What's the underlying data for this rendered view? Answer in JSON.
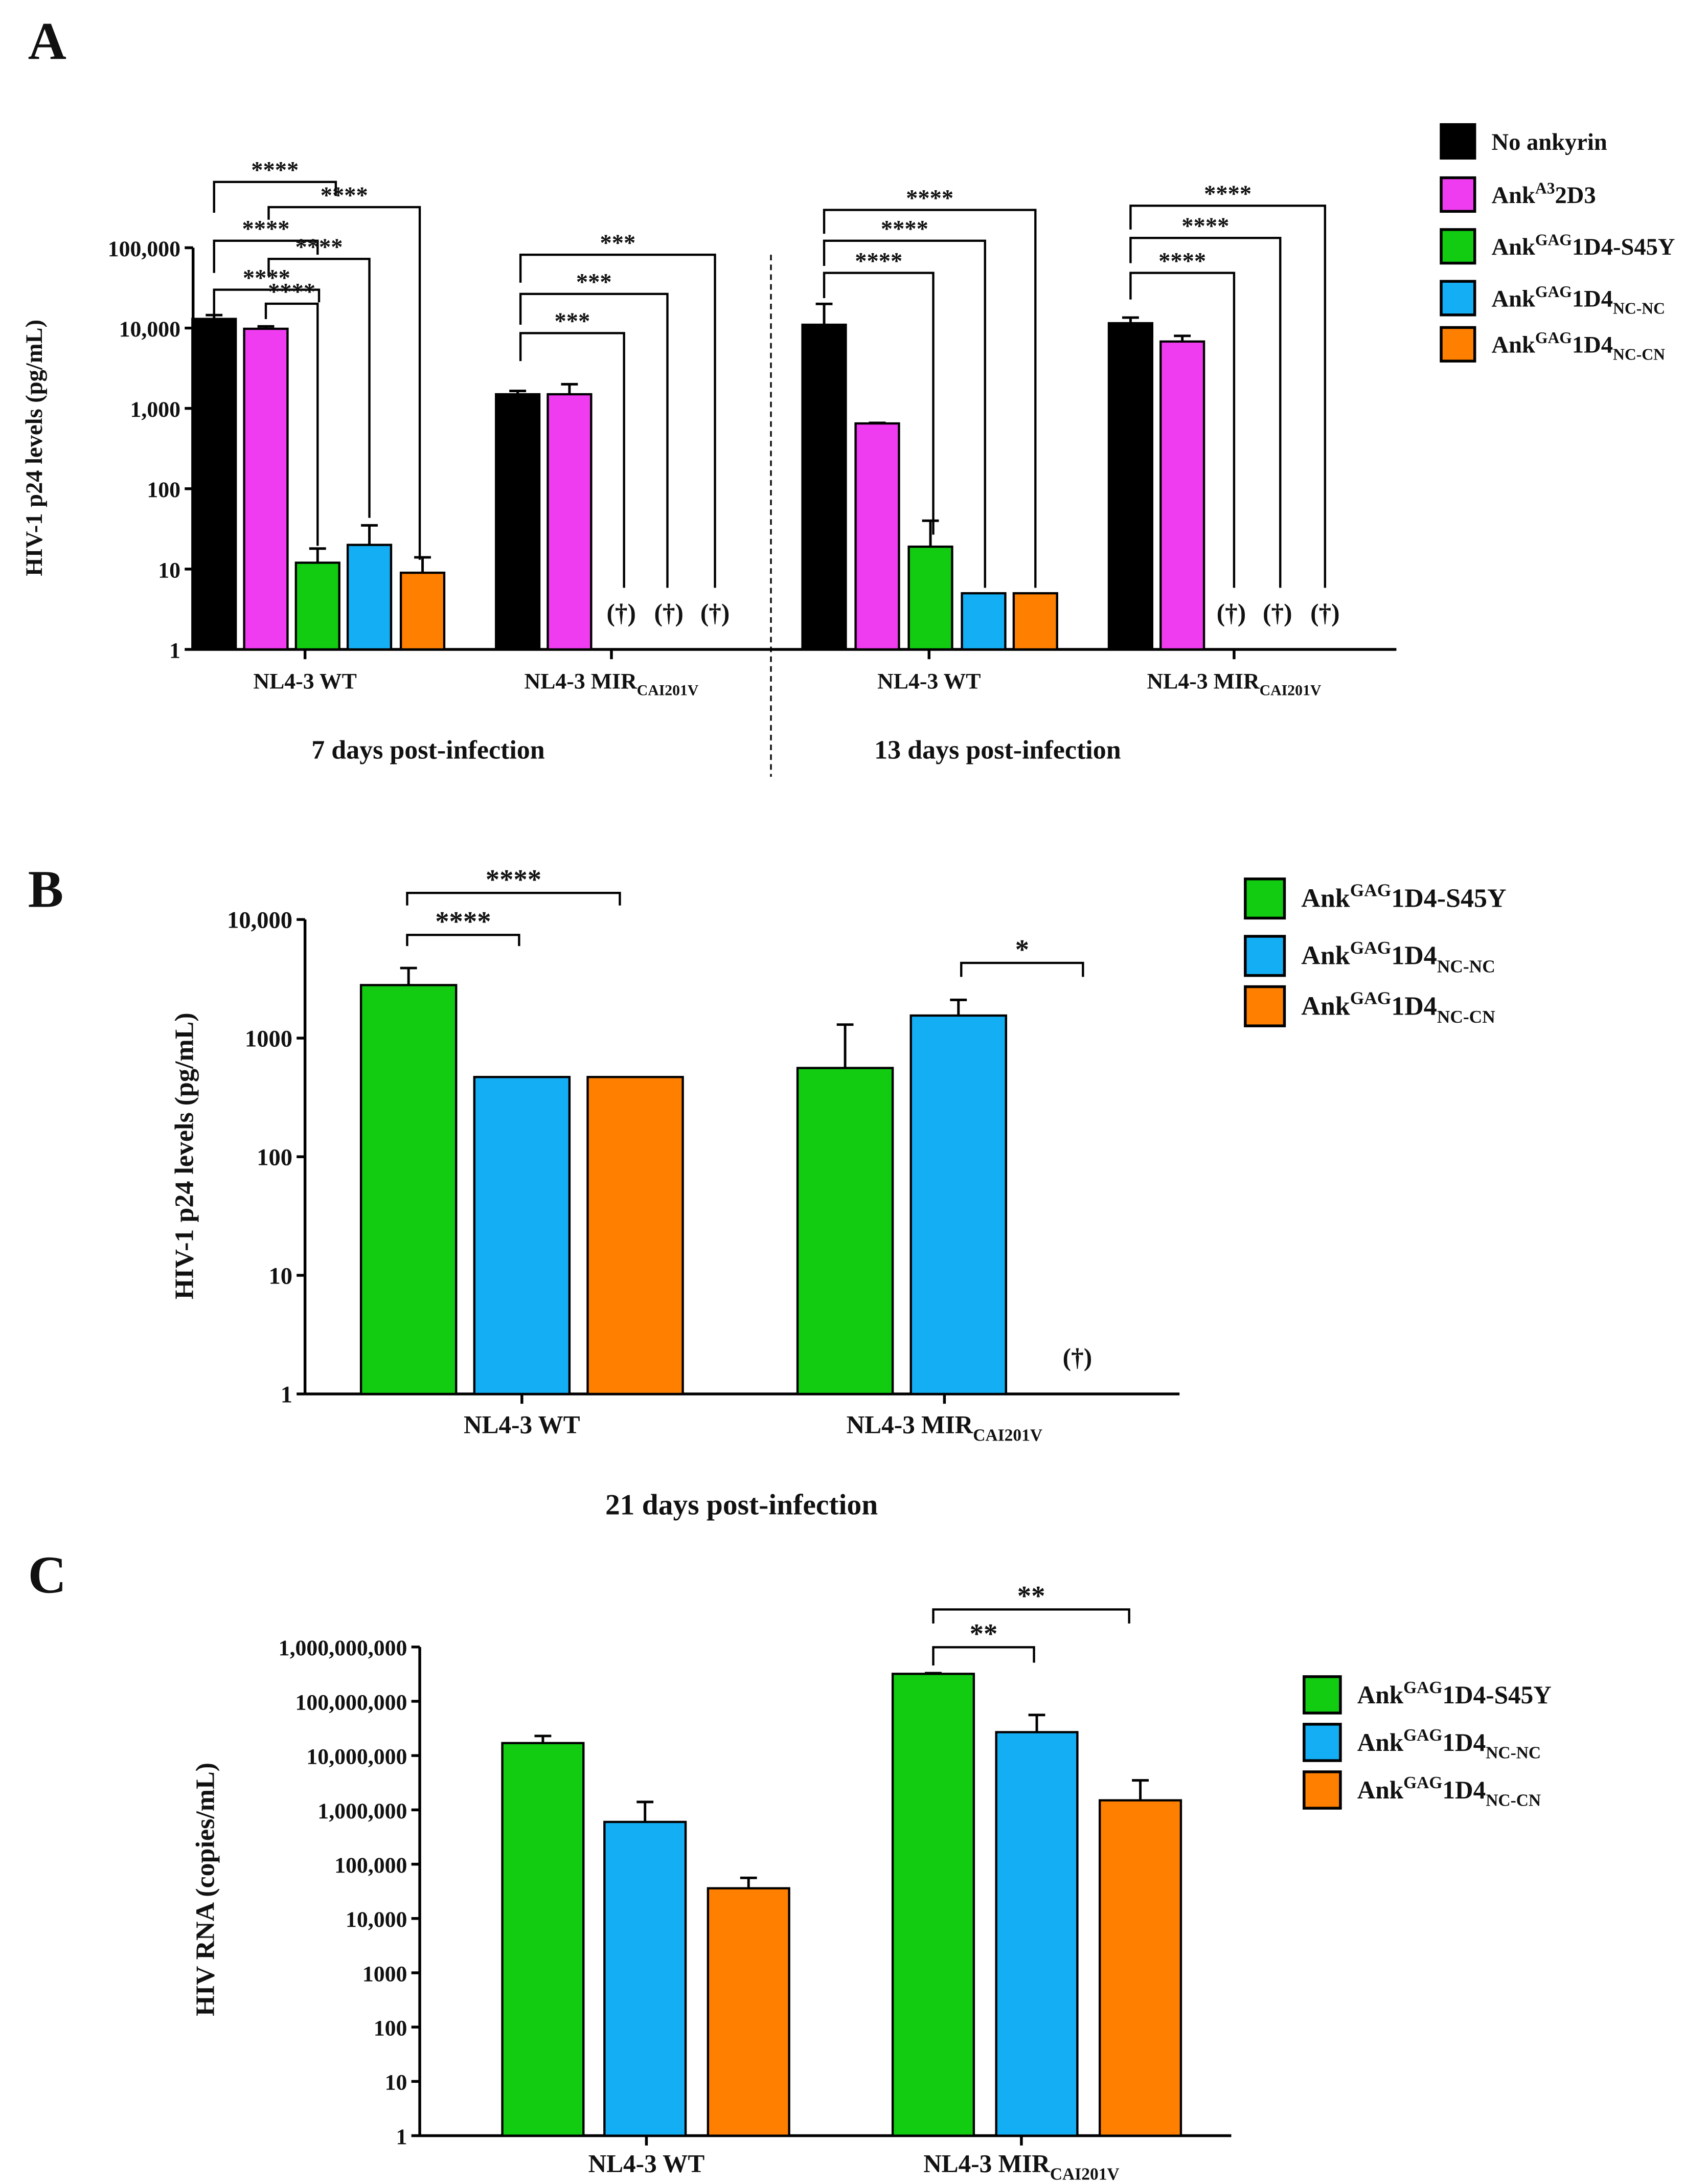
{
  "panels": {
    "a": "A",
    "b": "B",
    "c": "C"
  },
  "colors": {
    "no_ankyrin": "#000000",
    "a3_2d3": "#f03cf0",
    "s45y": "#11cc11",
    "nc_nc": "#14aef5",
    "nc_cn": "#ff8000"
  },
  "chart_data": [
    {
      "type": "bar",
      "panel": "A",
      "ylabel": "HIV-1 p24 levels (pg/mL)",
      "yscale": "log",
      "ylim": [
        1,
        100000
      ],
      "yticks": [
        "1",
        "10",
        "100",
        "1,000",
        "10,000",
        "100,000"
      ],
      "legend": [
        {
          "text": "No ankyrin",
          "color": "#000000"
        },
        {
          "text": "Ank",
          "sup": "A3",
          "after": "2D3",
          "color": "#f03cf0"
        },
        {
          "text": "Ank",
          "sup": "GAG",
          "after": "1D4-S45Y",
          "color": "#11cc11"
        },
        {
          "text": "Ank",
          "sup": "GAG",
          "after": "1D4",
          "sub": "NC-NC",
          "color": "#14aef5"
        },
        {
          "text": "Ank",
          "sup": "GAG",
          "after": "1D4",
          "sub": "NC-CN",
          "color": "#ff8000"
        }
      ],
      "legend_position": "top-right",
      "timepoints": [
        "7 days post-infection",
        "13 days post-infection"
      ],
      "groups": [
        {
          "label": "NL4-3 WT",
          "values": [
            13000,
            9800,
            12,
            20,
            9
          ],
          "error_upper": [
            14500,
            10500,
            18,
            35,
            14
          ],
          "brackets": [
            "****",
            "****",
            "****",
            "****",
            "****",
            "****"
          ]
        },
        {
          "label": "NL4-3 MIR",
          "sub": "CAI201V",
          "values": [
            1500,
            1500,
            null,
            null,
            null
          ],
          "error_upper": [
            1650,
            2000,
            null,
            null,
            null
          ],
          "brackets": [
            "***",
            "***",
            "***"
          ]
        },
        {
          "label": "NL4-3 WT",
          "values": [
            11000,
            650,
            19,
            5,
            5
          ],
          "error_upper": [
            20000,
            660,
            40,
            5,
            5
          ],
          "brackets": [
            "****",
            "****",
            "****"
          ]
        },
        {
          "label": "NL4-3 MIR",
          "sub": "CAI201V",
          "values": [
            11500,
            6800,
            null,
            null,
            null
          ],
          "error_upper": [
            13500,
            8000,
            null,
            null,
            null
          ],
          "brackets": [
            "****",
            "****",
            "****"
          ]
        }
      ],
      "missing_marker": "(†)"
    },
    {
      "type": "bar",
      "panel": "B",
      "ylabel": "HIV-1 p24 levels (pg/mL)",
      "yscale": "log",
      "ylim": [
        1,
        10000
      ],
      "yticks": [
        "1",
        "10",
        "100",
        "1000",
        "10,000"
      ],
      "legend": [
        {
          "text": "Ank",
          "sup": "GAG",
          "after": "1D4-S45Y",
          "color": "#11cc11"
        },
        {
          "text": "Ank",
          "sup": "GAG",
          "after": "1D4",
          "sub": "NC-NC",
          "color": "#14aef5"
        },
        {
          "text": "Ank",
          "sup": "GAG",
          "after": "1D4",
          "sub": "NC-CN",
          "color": "#ff8000"
        }
      ],
      "legend_position": "top-right",
      "timepoint": "21 days post-infection",
      "groups": [
        {
          "label": "NL4-3 WT",
          "values": [
            2800,
            470,
            470
          ],
          "error_upper": [
            3900,
            470,
            470
          ],
          "brackets": [
            "****",
            "****"
          ]
        },
        {
          "label": "NL4-3 MIR",
          "sub": "CAI201V",
          "values": [
            560,
            1550,
            null
          ],
          "error_upper": [
            1300,
            2100,
            null
          ],
          "brackets": [
            "*"
          ]
        }
      ],
      "missing_marker": "(†)"
    },
    {
      "type": "bar",
      "panel": "C",
      "ylabel": "HIV RNA (copies/mL)",
      "yscale": "log",
      "ylim": [
        1,
        1000000000
      ],
      "yticks": [
        "1",
        "10",
        "100",
        "1000",
        "10,000",
        "100,000",
        "1,000,000",
        "10,000,000",
        "100,000,000",
        "1,000,000,000"
      ],
      "legend": [
        {
          "text": "Ank",
          "sup": "GAG",
          "after": "1D4-S45Y",
          "color": "#11cc11"
        },
        {
          "text": "Ank",
          "sup": "GAG",
          "after": "1D4",
          "sub": "NC-NC",
          "color": "#14aef5"
        },
        {
          "text": "Ank",
          "sup": "GAG",
          "after": "1D4",
          "sub": "NC-CN",
          "color": "#ff8000"
        }
      ],
      "legend_position": "right",
      "groups": [
        {
          "label": "NL4-3 WT",
          "values": [
            17000000,
            600000,
            36000
          ],
          "error_upper": [
            23000000,
            1400000,
            56000
          ],
          "brackets": []
        },
        {
          "label": "NL4-3 MIR",
          "sub": "CAI201V",
          "values": [
            320000000,
            27000000,
            1500000
          ],
          "error_upper": [
            330000000,
            56000000,
            3500000
          ],
          "brackets": [
            "**",
            "**"
          ]
        }
      ]
    }
  ]
}
